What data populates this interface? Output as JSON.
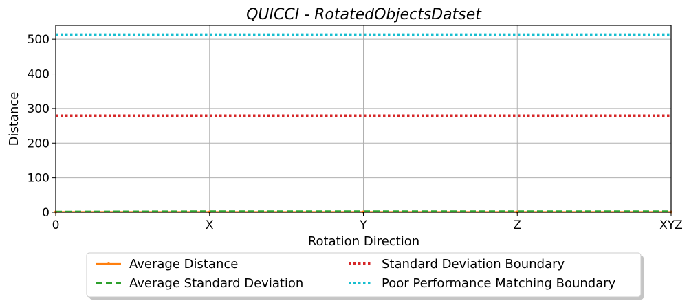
{
  "chart_data": {
    "type": "line",
    "title": "QUICCI - RotatedObjectsDatset",
    "xlabel": "Rotation Direction",
    "ylabel": "Distance",
    "categories": [
      "0",
      "X",
      "Y",
      "Z",
      "XYZ"
    ],
    "ylim": [
      0,
      540
    ],
    "yticks": [
      0,
      100,
      200,
      300,
      400,
      500
    ],
    "grid": true,
    "legend_position": "bottom-center",
    "series": [
      {
        "name": "Average Distance",
        "values": [
          1,
          1,
          1,
          1,
          1
        ],
        "color": "#ff7f0e",
        "style": "solid-marker"
      },
      {
        "name": "Average Standard Deviation",
        "values": [
          2,
          3,
          3,
          3,
          3
        ],
        "color": "#2ca02c",
        "style": "dashed"
      },
      {
        "name": "Standard Deviation Boundary",
        "values": [
          279,
          279,
          279,
          279,
          279
        ],
        "color": "#d62728",
        "style": "dotted"
      },
      {
        "name": "Poor Performance Matching Boundary",
        "values": [
          513,
          513,
          513,
          513,
          513
        ],
        "color": "#17becf",
        "style": "dotted"
      }
    ]
  }
}
